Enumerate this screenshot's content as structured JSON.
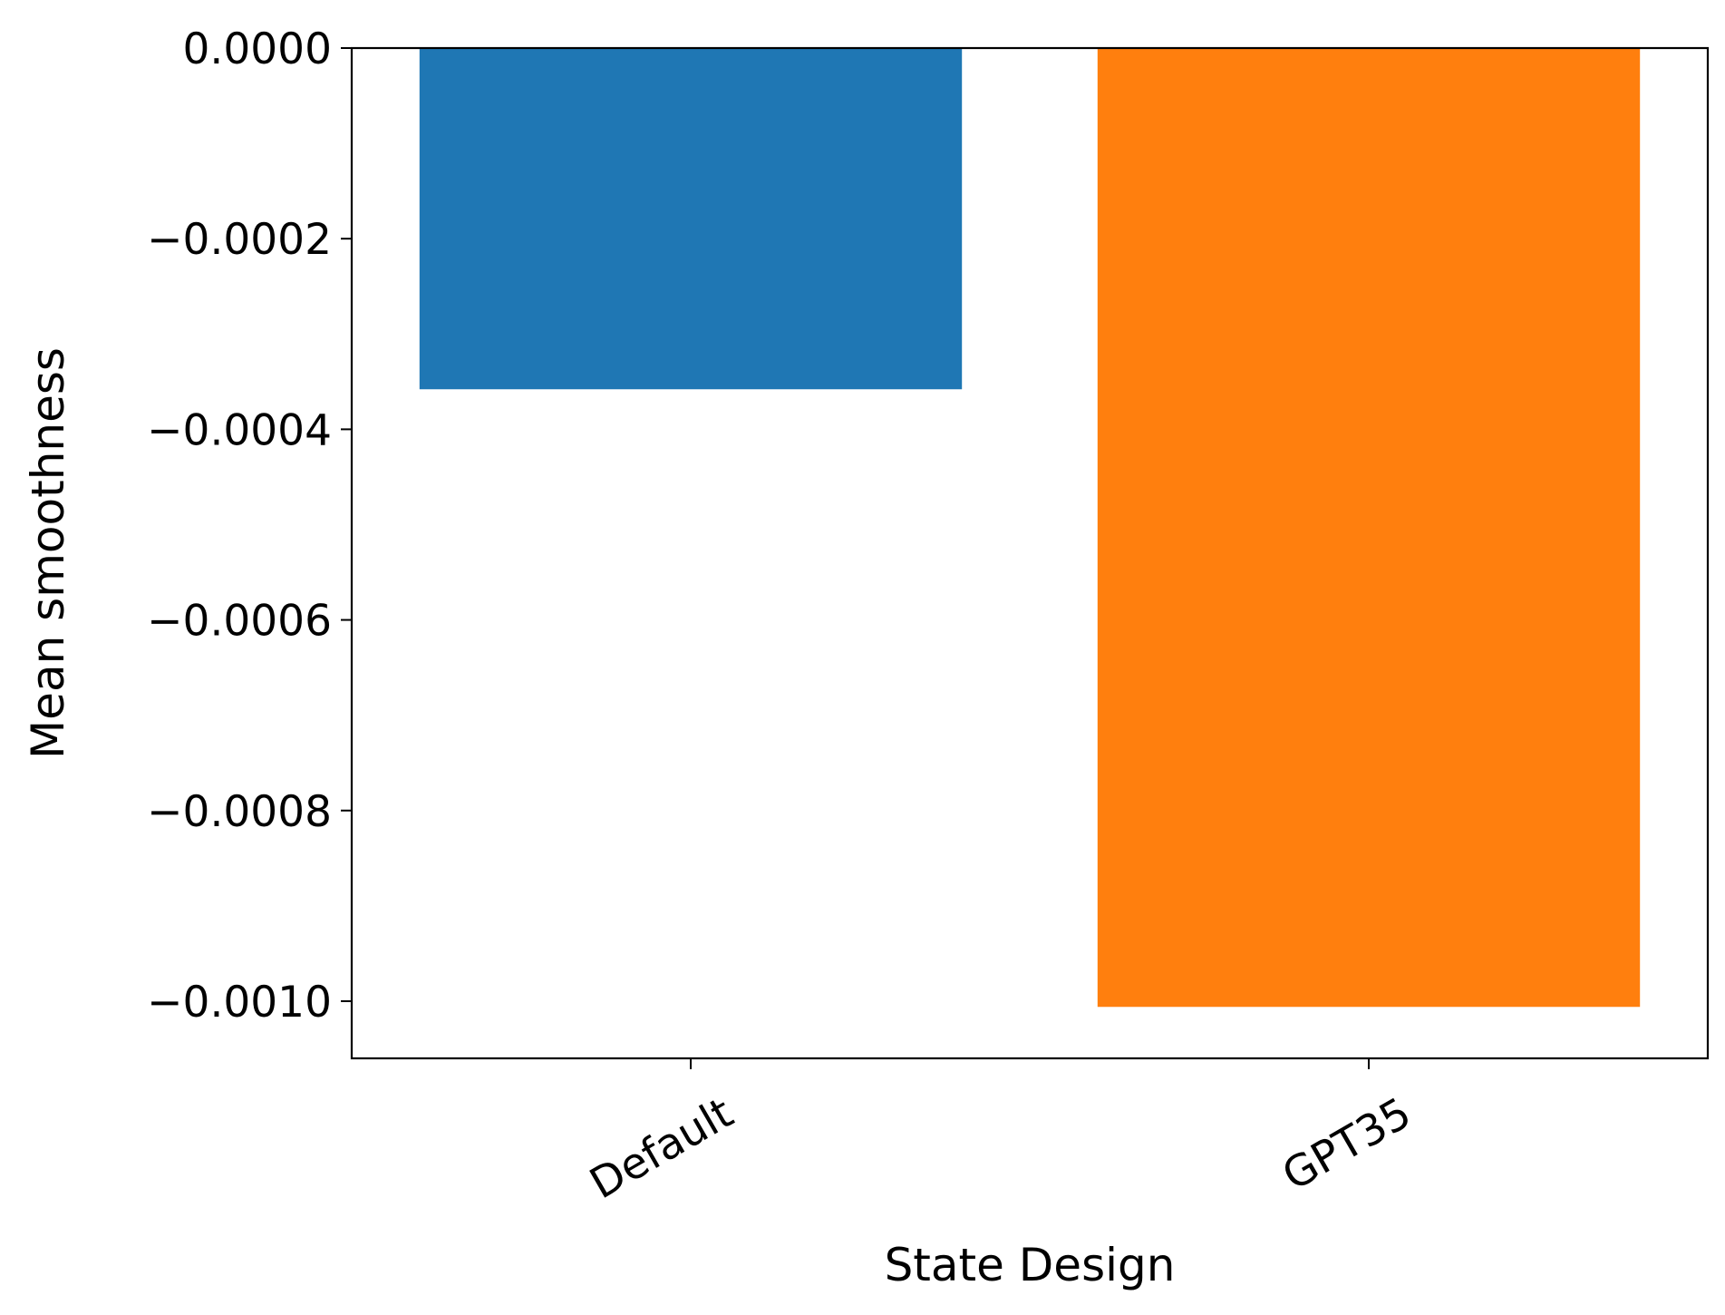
{
  "chart_data": {
    "type": "bar",
    "title": "",
    "xlabel": "State Design",
    "ylabel": "Mean smoothness",
    "categories": [
      "Default",
      "GPT35"
    ],
    "values": [
      -0.000358,
      -0.001006
    ],
    "colors": [
      "#1f77b4",
      "#ff7f0e"
    ],
    "ylim": [
      -0.00106,
      0.0
    ],
    "yticks": [
      0.0,
      -0.0002,
      -0.0004,
      -0.0006,
      -0.0008,
      -0.001
    ],
    "ytick_labels": [
      "0.0000",
      "−0.0002",
      "−0.0004",
      "−0.0006",
      "−0.0008",
      "−0.0010"
    ],
    "grid": false,
    "legend": "none"
  }
}
